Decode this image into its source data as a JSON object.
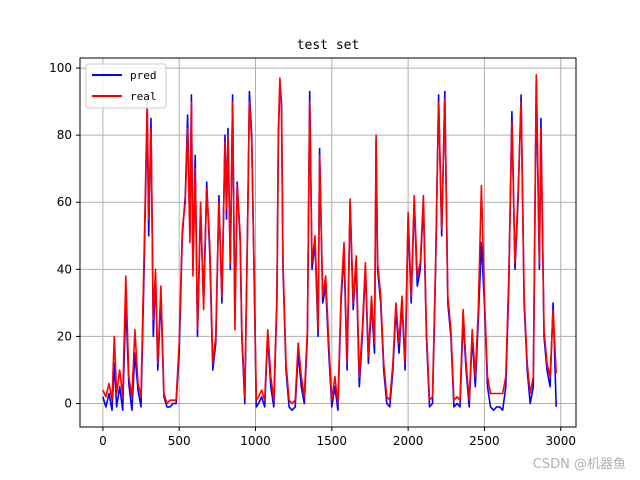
{
  "chart_data": {
    "type": "line",
    "title": "test set",
    "xlabel": "",
    "ylabel": "",
    "xlim": [
      -150,
      3100
    ],
    "ylim": [
      -7,
      103
    ],
    "xticks": [
      0,
      500,
      1000,
      1500,
      2000,
      2500,
      3000
    ],
    "yticks": [
      0,
      20,
      40,
      60,
      80,
      100
    ],
    "grid": true,
    "legend_position": "top-left",
    "series": [
      {
        "name": "pred",
        "color": "#0000ff",
        "points": [
          [
            0,
            2
          ],
          [
            20,
            -1
          ],
          [
            40,
            3
          ],
          [
            60,
            -2
          ],
          [
            75,
            12
          ],
          [
            90,
            -1
          ],
          [
            110,
            5
          ],
          [
            130,
            -2
          ],
          [
            150,
            30
          ],
          [
            170,
            6
          ],
          [
            190,
            -2
          ],
          [
            210,
            15
          ],
          [
            230,
            4
          ],
          [
            250,
            -1
          ],
          [
            270,
            40
          ],
          [
            290,
            88
          ],
          [
            300,
            50
          ],
          [
            315,
            85
          ],
          [
            330,
            20
          ],
          [
            345,
            38
          ],
          [
            360,
            10
          ],
          [
            380,
            32
          ],
          [
            400,
            2
          ],
          [
            420,
            -1
          ],
          [
            440,
            -1
          ],
          [
            460,
            0
          ],
          [
            480,
            0
          ],
          [
            500,
            15
          ],
          [
            520,
            50
          ],
          [
            540,
            62
          ],
          [
            555,
            86
          ],
          [
            570,
            50
          ],
          [
            580,
            92
          ],
          [
            590,
            40
          ],
          [
            605,
            74
          ],
          [
            620,
            20
          ],
          [
            640,
            58
          ],
          [
            660,
            30
          ],
          [
            680,
            66
          ],
          [
            700,
            45
          ],
          [
            720,
            10
          ],
          [
            740,
            18
          ],
          [
            760,
            62
          ],
          [
            780,
            30
          ],
          [
            800,
            80
          ],
          [
            810,
            55
          ],
          [
            820,
            82
          ],
          [
            835,
            40
          ],
          [
            850,
            92
          ],
          [
            865,
            25
          ],
          [
            880,
            66
          ],
          [
            900,
            48
          ],
          [
            910,
            20
          ],
          [
            930,
            0
          ],
          [
            950,
            60
          ],
          [
            960,
            93
          ],
          [
            975,
            80
          ],
          [
            990,
            40
          ],
          [
            1005,
            -1
          ],
          [
            1020,
            0
          ],
          [
            1040,
            2
          ],
          [
            1060,
            -1
          ],
          [
            1080,
            20
          ],
          [
            1100,
            5
          ],
          [
            1120,
            -1
          ],
          [
            1140,
            30
          ],
          [
            1150,
            80
          ],
          [
            1160,
            95
          ],
          [
            1170,
            90
          ],
          [
            1180,
            40
          ],
          [
            1200,
            10
          ],
          [
            1220,
            -1
          ],
          [
            1240,
            -2
          ],
          [
            1260,
            -1
          ],
          [
            1280,
            15
          ],
          [
            1300,
            5
          ],
          [
            1320,
            0
          ],
          [
            1340,
            20
          ],
          [
            1355,
            93
          ],
          [
            1370,
            40
          ],
          [
            1390,
            48
          ],
          [
            1410,
            20
          ],
          [
            1420,
            76
          ],
          [
            1440,
            30
          ],
          [
            1460,
            35
          ],
          [
            1480,
            15
          ],
          [
            1500,
            -1
          ],
          [
            1520,
            5
          ],
          [
            1540,
            -2
          ],
          [
            1560,
            30
          ],
          [
            1580,
            45
          ],
          [
            1600,
            10
          ],
          [
            1620,
            60
          ],
          [
            1640,
            28
          ],
          [
            1660,
            42
          ],
          [
            1680,
            5
          ],
          [
            1700,
            20
          ],
          [
            1720,
            40
          ],
          [
            1740,
            12
          ],
          [
            1760,
            30
          ],
          [
            1780,
            15
          ],
          [
            1790,
            78
          ],
          [
            1800,
            40
          ],
          [
            1820,
            30
          ],
          [
            1840,
            10
          ],
          [
            1860,
            0
          ],
          [
            1880,
            -1
          ],
          [
            1900,
            10
          ],
          [
            1920,
            28
          ],
          [
            1940,
            15
          ],
          [
            1960,
            30
          ],
          [
            1980,
            10
          ],
          [
            2000,
            55
          ],
          [
            2020,
            30
          ],
          [
            2040,
            60
          ],
          [
            2060,
            35
          ],
          [
            2080,
            40
          ],
          [
            2100,
            60
          ],
          [
            2120,
            20
          ],
          [
            2140,
            -1
          ],
          [
            2160,
            0
          ],
          [
            2180,
            40
          ],
          [
            2200,
            92
          ],
          [
            2220,
            50
          ],
          [
            2240,
            93
          ],
          [
            2260,
            30
          ],
          [
            2280,
            20
          ],
          [
            2300,
            -1
          ],
          [
            2320,
            0
          ],
          [
            2340,
            -1
          ],
          [
            2360,
            25
          ],
          [
            2380,
            10
          ],
          [
            2400,
            -1
          ],
          [
            2420,
            20
          ],
          [
            2440,
            5
          ],
          [
            2460,
            25
          ],
          [
            2480,
            48
          ],
          [
            2500,
            30
          ],
          [
            2520,
            5
          ],
          [
            2540,
            -1
          ],
          [
            2560,
            -2
          ],
          [
            2580,
            -1
          ],
          [
            2600,
            -1
          ],
          [
            2620,
            -2
          ],
          [
            2640,
            5
          ],
          [
            2660,
            35
          ],
          [
            2680,
            87
          ],
          [
            2700,
            40
          ],
          [
            2720,
            60
          ],
          [
            2740,
            92
          ],
          [
            2760,
            30
          ],
          [
            2780,
            10
          ],
          [
            2800,
            0
          ],
          [
            2820,
            5
          ],
          [
            2840,
            97
          ],
          [
            2860,
            40
          ],
          [
            2870,
            85
          ],
          [
            2890,
            20
          ],
          [
            2910,
            10
          ],
          [
            2930,
            5
          ],
          [
            2950,
            30
          ],
          [
            2970,
            -1
          ]
        ]
      },
      {
        "name": "real",
        "color": "#ff0000",
        "points": [
          [
            0,
            4
          ],
          [
            20,
            2
          ],
          [
            40,
            6
          ],
          [
            60,
            1
          ],
          [
            75,
            20
          ],
          [
            90,
            3
          ],
          [
            110,
            10
          ],
          [
            130,
            2
          ],
          [
            150,
            38
          ],
          [
            170,
            8
          ],
          [
            190,
            2
          ],
          [
            210,
            22
          ],
          [
            230,
            6
          ],
          [
            250,
            2
          ],
          [
            270,
            45
          ],
          [
            290,
            90
          ],
          [
            300,
            55
          ],
          [
            315,
            82
          ],
          [
            330,
            25
          ],
          [
            345,
            40
          ],
          [
            360,
            12
          ],
          [
            380,
            35
          ],
          [
            400,
            3
          ],
          [
            420,
            0
          ],
          [
            440,
            1
          ],
          [
            460,
            1
          ],
          [
            480,
            1
          ],
          [
            500,
            18
          ],
          [
            520,
            52
          ],
          [
            540,
            60
          ],
          [
            555,
            82
          ],
          [
            570,
            48
          ],
          [
            580,
            90
          ],
          [
            590,
            38
          ],
          [
            605,
            70
          ],
          [
            620,
            22
          ],
          [
            640,
            60
          ],
          [
            660,
            28
          ],
          [
            680,
            64
          ],
          [
            700,
            48
          ],
          [
            720,
            12
          ],
          [
            740,
            20
          ],
          [
            760,
            60
          ],
          [
            780,
            32
          ],
          [
            800,
            78
          ],
          [
            810,
            58
          ],
          [
            820,
            80
          ],
          [
            835,
            42
          ],
          [
            850,
            90
          ],
          [
            865,
            22
          ],
          [
            880,
            65
          ],
          [
            900,
            50
          ],
          [
            910,
            22
          ],
          [
            930,
            2
          ],
          [
            950,
            58
          ],
          [
            960,
            90
          ],
          [
            975,
            78
          ],
          [
            990,
            42
          ],
          [
            1005,
            1
          ],
          [
            1020,
            2
          ],
          [
            1040,
            4
          ],
          [
            1060,
            1
          ],
          [
            1080,
            22
          ],
          [
            1100,
            8
          ],
          [
            1120,
            1
          ],
          [
            1140,
            32
          ],
          [
            1150,
            82
          ],
          [
            1160,
            97
          ],
          [
            1170,
            88
          ],
          [
            1180,
            42
          ],
          [
            1200,
            12
          ],
          [
            1220,
            1
          ],
          [
            1240,
            0
          ],
          [
            1260,
            1
          ],
          [
            1280,
            18
          ],
          [
            1300,
            8
          ],
          [
            1320,
            2
          ],
          [
            1340,
            22
          ],
          [
            1355,
            90
          ],
          [
            1370,
            42
          ],
          [
            1390,
            50
          ],
          [
            1410,
            22
          ],
          [
            1420,
            74
          ],
          [
            1440,
            32
          ],
          [
            1460,
            38
          ],
          [
            1480,
            18
          ],
          [
            1500,
            1
          ],
          [
            1520,
            8
          ],
          [
            1540,
            0
          ],
          [
            1560,
            32
          ],
          [
            1580,
            48
          ],
          [
            1600,
            12
          ],
          [
            1620,
            61
          ],
          [
            1640,
            30
          ],
          [
            1660,
            44
          ],
          [
            1680,
            8
          ],
          [
            1700,
            22
          ],
          [
            1720,
            42
          ],
          [
            1740,
            14
          ],
          [
            1760,
            32
          ],
          [
            1780,
            18
          ],
          [
            1790,
            80
          ],
          [
            1800,
            42
          ],
          [
            1820,
            32
          ],
          [
            1840,
            12
          ],
          [
            1860,
            2
          ],
          [
            1880,
            1
          ],
          [
            1900,
            12
          ],
          [
            1920,
            30
          ],
          [
            1940,
            18
          ],
          [
            1960,
            32
          ],
          [
            1980,
            12
          ],
          [
            2000,
            57
          ],
          [
            2020,
            32
          ],
          [
            2040,
            62
          ],
          [
            2060,
            38
          ],
          [
            2080,
            42
          ],
          [
            2100,
            62
          ],
          [
            2120,
            22
          ],
          [
            2140,
            1
          ],
          [
            2160,
            2
          ],
          [
            2180,
            42
          ],
          [
            2200,
            90
          ],
          [
            2220,
            52
          ],
          [
            2240,
            91
          ],
          [
            2260,
            32
          ],
          [
            2280,
            22
          ],
          [
            2300,
            1
          ],
          [
            2320,
            2
          ],
          [
            2340,
            1
          ],
          [
            2360,
            28
          ],
          [
            2380,
            12
          ],
          [
            2400,
            1
          ],
          [
            2420,
            22
          ],
          [
            2440,
            8
          ],
          [
            2460,
            28
          ],
          [
            2480,
            65
          ],
          [
            2500,
            32
          ],
          [
            2520,
            8
          ],
          [
            2540,
            3
          ],
          [
            2560,
            3
          ],
          [
            2580,
            3
          ],
          [
            2600,
            3
          ],
          [
            2620,
            3
          ],
          [
            2640,
            8
          ],
          [
            2660,
            38
          ],
          [
            2680,
            84
          ],
          [
            2700,
            42
          ],
          [
            2720,
            62
          ],
          [
            2740,
            90
          ],
          [
            2760,
            32
          ],
          [
            2780,
            12
          ],
          [
            2800,
            3
          ],
          [
            2820,
            8
          ],
          [
            2840,
            98
          ],
          [
            2860,
            42
          ],
          [
            2870,
            82
          ],
          [
            2890,
            22
          ],
          [
            2910,
            12
          ],
          [
            2930,
            8
          ],
          [
            2950,
            28
          ],
          [
            2970,
            9
          ]
        ]
      }
    ]
  },
  "watermark": "CSDN @机器鱼",
  "colors": {
    "grid": "#b0b0b0",
    "axes": "#000000",
    "background": "#ffffff"
  }
}
